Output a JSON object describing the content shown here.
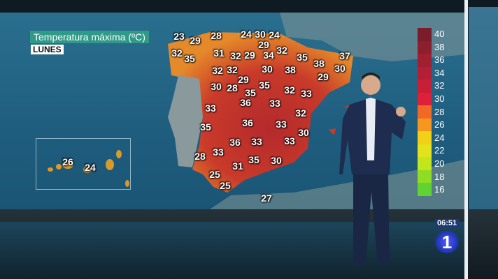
{
  "header": {
    "title": "Temperatura máxima (ºC)",
    "day": "LUNES"
  },
  "map": {
    "temperatures": [
      23,
      29,
      28,
      24,
      30,
      24,
      29,
      32,
      35,
      31,
      32,
      29,
      34,
      32,
      35,
      38,
      37,
      30,
      32,
      32,
      30,
      38,
      29,
      29,
      30,
      28,
      35,
      35,
      32,
      33,
      33,
      36,
      33,
      32,
      35,
      36,
      33,
      30,
      36,
      33,
      33,
      28,
      33,
      35,
      30,
      31,
      25,
      25,
      27
    ],
    "canary_temperatures": [
      26,
      24
    ]
  },
  "legend": {
    "ticks": [
      "40",
      "38",
      "36",
      "34",
      "32",
      "30",
      "28",
      "26",
      "24",
      "22",
      "20",
      "18",
      "16"
    ],
    "colors": [
      "#7a1c2a",
      "#8c1f2e",
      "#a02032",
      "#b32035",
      "#c81e37",
      "#e0203a",
      "#f06a25",
      "#f5961f",
      "#f2d015",
      "#e3e21c",
      "#c2e51c",
      "#8fdd22",
      "#5fd431"
    ]
  },
  "broadcast": {
    "clock": "06:51",
    "channel_logo": "1"
  }
}
